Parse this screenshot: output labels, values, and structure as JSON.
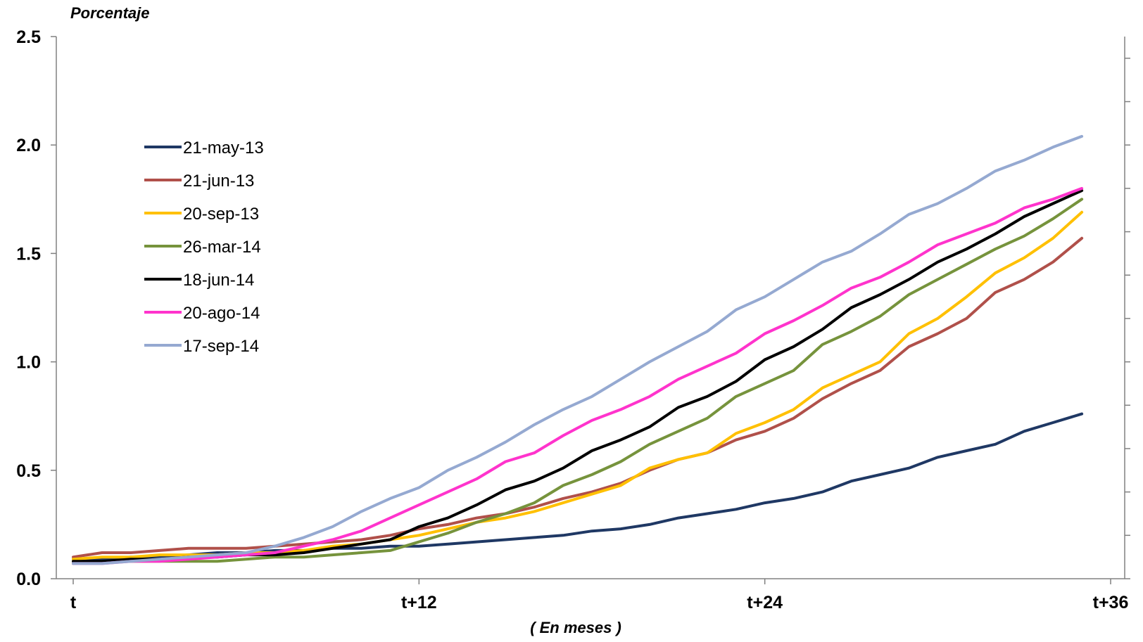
{
  "chart_data": {
    "type": "line",
    "ylabel": "Porcentaje",
    "xlabel": "( En meses )",
    "ylim": [
      0,
      2.5
    ],
    "y_ticks": [
      "0.0",
      "0.5",
      "1.0",
      "1.5",
      "2.0",
      "2.5"
    ],
    "xlim": [
      0,
      36
    ],
    "x_ticks": [
      {
        "value": 0,
        "label": "t"
      },
      {
        "value": 12,
        "label": "t+12"
      },
      {
        "value": 24,
        "label": "t+24"
      },
      {
        "value": 36,
        "label": "t+36"
      }
    ],
    "x": [
      0,
      1,
      2,
      3,
      4,
      5,
      6,
      7,
      8,
      9,
      10,
      11,
      12,
      13,
      14,
      15,
      16,
      17,
      18,
      19,
      20,
      21,
      22,
      23,
      24,
      25,
      26,
      27,
      28,
      29,
      30,
      31,
      32,
      33,
      34,
      35
    ],
    "grid": false,
    "legend_position": "left",
    "series": [
      {
        "name": "21-may-13",
        "color": "#1f3864",
        "values": [
          0.09,
          0.09,
          0.1,
          0.1,
          0.11,
          0.12,
          0.12,
          0.13,
          0.13,
          0.14,
          0.14,
          0.15,
          0.15,
          0.16,
          0.17,
          0.18,
          0.19,
          0.2,
          0.22,
          0.23,
          0.25,
          0.28,
          0.3,
          0.32,
          0.35,
          0.37,
          0.4,
          0.45,
          0.48,
          0.51,
          0.56,
          0.59,
          0.62,
          0.68,
          0.72,
          0.76
        ]
      },
      {
        "name": "21-jun-13",
        "color": "#b0504a",
        "values": [
          0.1,
          0.12,
          0.12,
          0.13,
          0.14,
          0.14,
          0.14,
          0.15,
          0.16,
          0.17,
          0.18,
          0.2,
          0.23,
          0.25,
          0.28,
          0.3,
          0.33,
          0.37,
          0.4,
          0.44,
          0.5,
          0.55,
          0.58,
          0.64,
          0.68,
          0.74,
          0.83,
          0.9,
          0.96,
          1.07,
          1.13,
          1.2,
          1.32,
          1.38,
          1.46,
          1.57
        ]
      },
      {
        "name": "20-sep-13",
        "color": "#ffc000",
        "values": [
          0.09,
          0.1,
          0.1,
          0.11,
          0.11,
          0.11,
          0.12,
          0.12,
          0.13,
          0.15,
          0.16,
          0.18,
          0.2,
          0.23,
          0.26,
          0.28,
          0.31,
          0.35,
          0.39,
          0.43,
          0.51,
          0.55,
          0.58,
          0.67,
          0.72,
          0.78,
          0.88,
          0.94,
          1.0,
          1.13,
          1.2,
          1.3,
          1.41,
          1.48,
          1.57,
          1.69
        ]
      },
      {
        "name": "26-mar-14",
        "color": "#76933c",
        "values": [
          0.07,
          0.08,
          0.08,
          0.08,
          0.08,
          0.08,
          0.09,
          0.1,
          0.1,
          0.11,
          0.12,
          0.13,
          0.17,
          0.21,
          0.26,
          0.3,
          0.35,
          0.43,
          0.48,
          0.54,
          0.62,
          0.68,
          0.74,
          0.84,
          0.9,
          0.96,
          1.08,
          1.14,
          1.21,
          1.31,
          1.38,
          1.45,
          1.52,
          1.58,
          1.66,
          1.75
        ]
      },
      {
        "name": "18-jun-14",
        "color": "#000000",
        "values": [
          0.08,
          0.08,
          0.09,
          0.09,
          0.1,
          0.1,
          0.11,
          0.11,
          0.12,
          0.14,
          0.16,
          0.18,
          0.24,
          0.28,
          0.34,
          0.41,
          0.45,
          0.51,
          0.59,
          0.64,
          0.7,
          0.79,
          0.84,
          0.91,
          1.01,
          1.07,
          1.15,
          1.25,
          1.31,
          1.38,
          1.46,
          1.52,
          1.59,
          1.67,
          1.73,
          1.79
        ]
      },
      {
        "name": "20-ago-14",
        "color": "#ff33cc",
        "values": [
          0.07,
          0.07,
          0.08,
          0.08,
          0.09,
          0.1,
          0.11,
          0.12,
          0.15,
          0.18,
          0.22,
          0.28,
          0.34,
          0.4,
          0.46,
          0.54,
          0.58,
          0.66,
          0.73,
          0.78,
          0.84,
          0.92,
          0.98,
          1.04,
          1.13,
          1.19,
          1.26,
          1.34,
          1.39,
          1.46,
          1.54,
          1.59,
          1.64,
          1.71,
          1.75,
          1.8
        ]
      },
      {
        "name": "17-sep-14",
        "color": "#95a9d1",
        "values": [
          0.07,
          0.07,
          0.08,
          0.09,
          0.1,
          0.11,
          0.12,
          0.15,
          0.19,
          0.24,
          0.31,
          0.37,
          0.42,
          0.5,
          0.56,
          0.63,
          0.71,
          0.78,
          0.84,
          0.92,
          1.0,
          1.07,
          1.14,
          1.24,
          1.3,
          1.38,
          1.46,
          1.51,
          1.59,
          1.68,
          1.73,
          1.8,
          1.88,
          1.93,
          1.99,
          2.04
        ]
      }
    ]
  }
}
